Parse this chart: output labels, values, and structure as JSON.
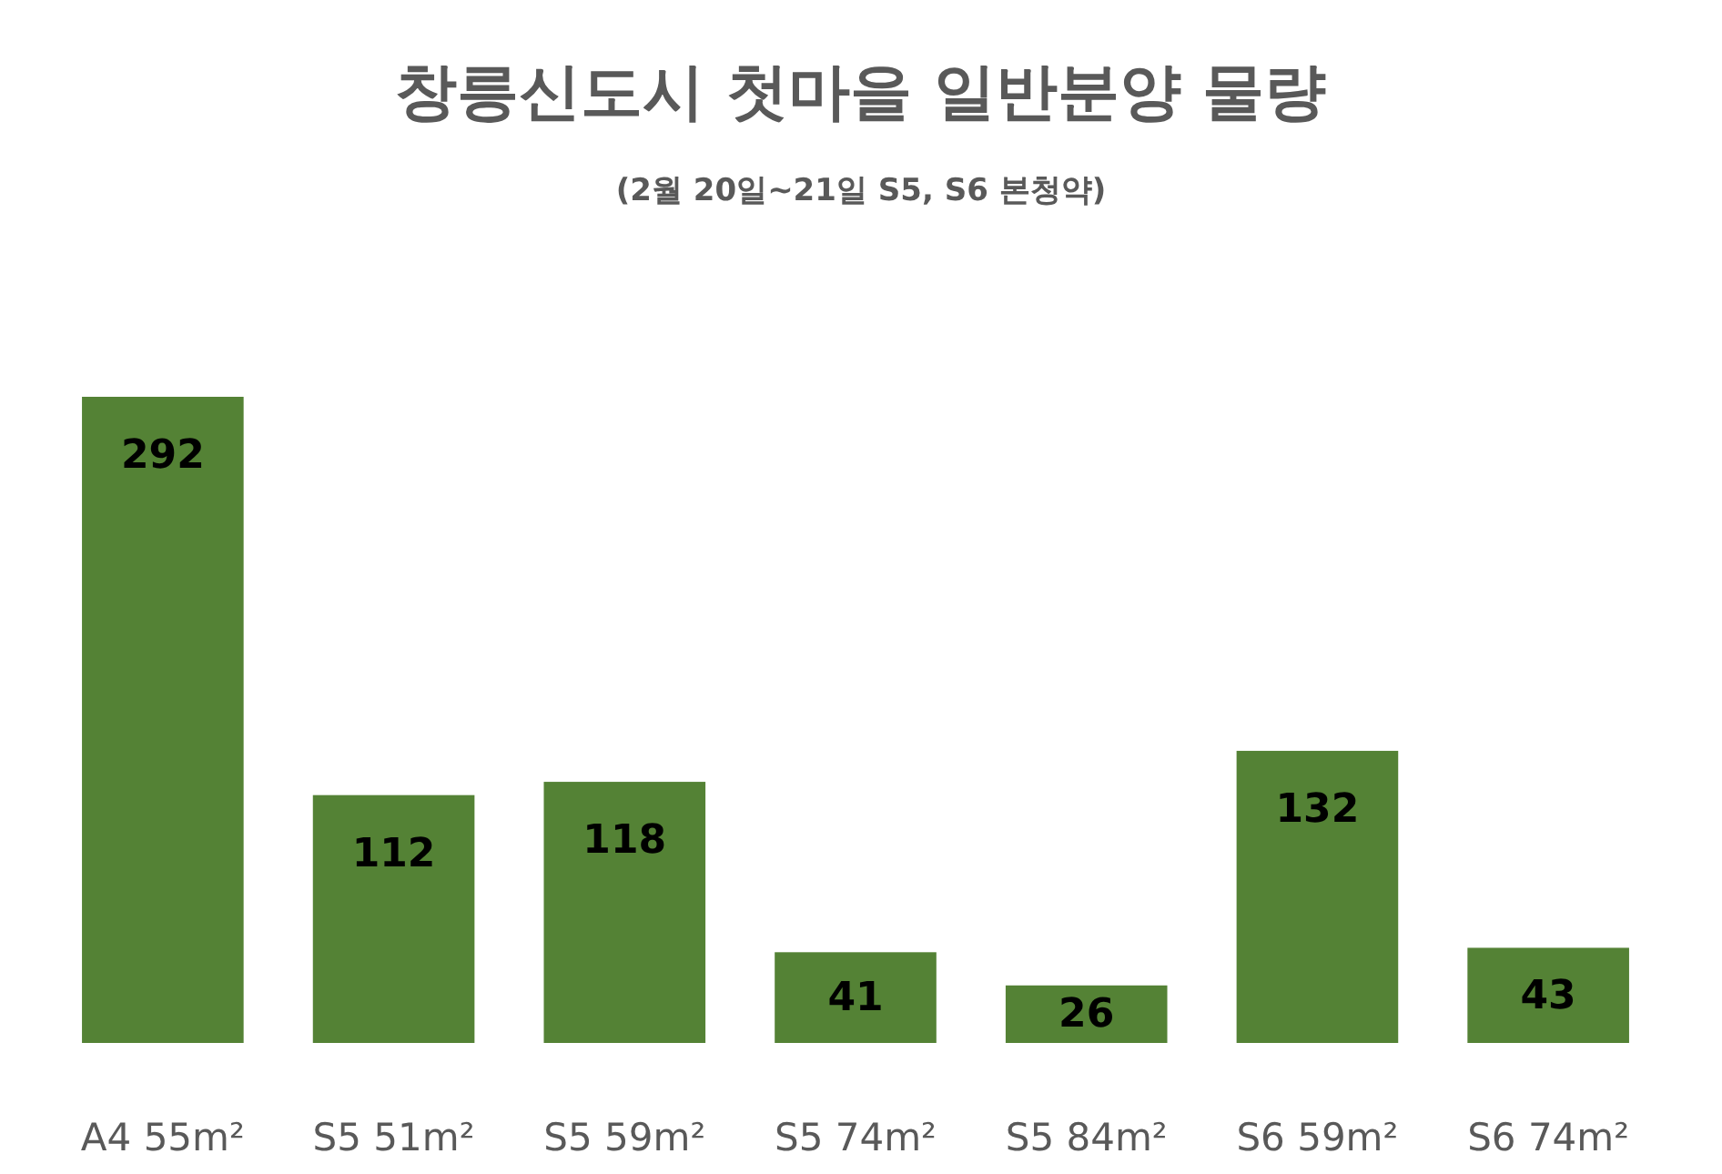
{
  "chart_data": {
    "type": "bar",
    "title": "창릉신도시 첫마을 일반분양 물량",
    "subtitle": "(2월 20일~21일 S5, S6 본청약)",
    "categories": [
      "A4 55m²",
      "S5 51m²",
      "S5 59m²",
      "S5 74m²",
      "S5 84m²",
      "S6 59m²",
      "S6 74m²"
    ],
    "values": [
      292,
      112,
      118,
      41,
      26,
      132,
      43
    ],
    "color": "#548235",
    "data_labels": true
  }
}
